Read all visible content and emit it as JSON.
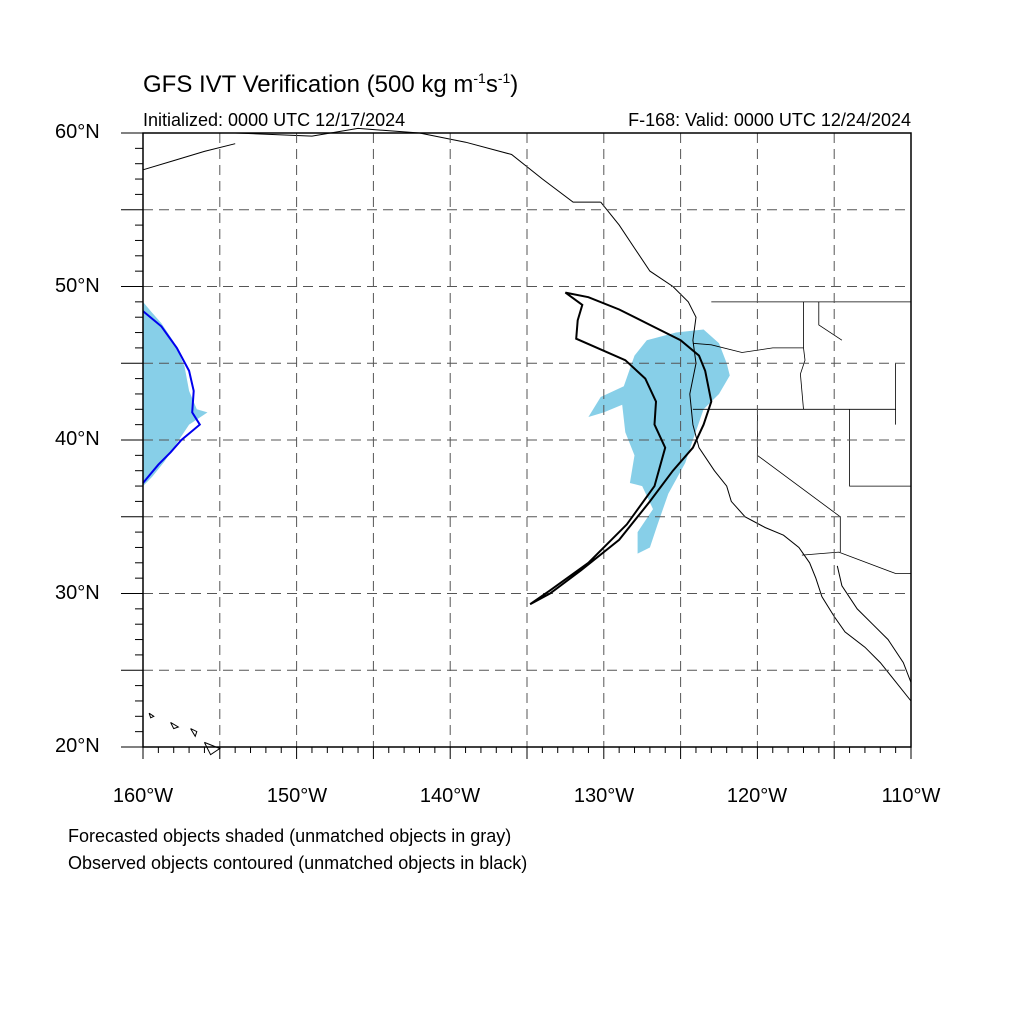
{
  "title": {
    "main": "GFS IVT Verification (500 kg m",
    "exp1": "-1",
    "mid": "s",
    "exp2": "-1",
    "end": ")"
  },
  "subtitle_left": "Initialized: 0000 UTC 12/17/2024",
  "subtitle_right": "F-168: Valid: 0000 UTC 12/24/2024",
  "lat_labels": [
    "60°N",
    "50°N",
    "40°N",
    "30°N",
    "20°N"
  ],
  "lon_labels": [
    "160°W",
    "150°W",
    "140°W",
    "130°W",
    "120°W",
    "110°W"
  ],
  "notes": [
    "Forecasted objects shaded (unmatched objects in gray)",
    "Observed objects contoured (unmatched objects in black)"
  ],
  "colors": {
    "forecast_fill": "#87cfe8",
    "matched_contour": "#0000ee",
    "unmatched_contour": "#000000",
    "grid": "#555555"
  },
  "map_extent": {
    "lon_min": -160,
    "lon_max": -110,
    "lat_min": 20,
    "lat_max": 60
  },
  "forecast_objects": [
    {
      "name": "west-edge-object",
      "lonlat": [
        [
          -160,
          49
        ],
        [
          -159.5,
          48.4
        ],
        [
          -158.8,
          47.6
        ],
        [
          -158.0,
          46.4
        ],
        [
          -157.3,
          44.8
        ],
        [
          -157.0,
          43.2
        ],
        [
          -156.5,
          42.0
        ],
        [
          -155.8,
          41.8
        ],
        [
          -157.0,
          41.0
        ],
        [
          -157.8,
          39.8
        ],
        [
          -158.6,
          38.6
        ],
        [
          -159.4,
          37.6
        ],
        [
          -160,
          37.0
        ]
      ]
    },
    {
      "name": "ar-object",
      "lonlat": [
        [
          -128.8,
          42.3
        ],
        [
          -130.0,
          41.8
        ],
        [
          -131.0,
          41.5
        ],
        [
          -130.2,
          42.8
        ],
        [
          -128.7,
          43.5
        ],
        [
          -128.0,
          45.5
        ],
        [
          -127.2,
          46.5
        ],
        [
          -125.3,
          47.0
        ],
        [
          -123.5,
          47.2
        ],
        [
          -122.5,
          46.3
        ],
        [
          -122.0,
          45.0
        ],
        [
          -121.8,
          44.2
        ],
        [
          -122.5,
          43.0
        ],
        [
          -123.5,
          42.0
        ],
        [
          -124.2,
          40.0
        ],
        [
          -124.7,
          38.5
        ],
        [
          -125.8,
          36.5
        ],
        [
          -126.5,
          34.5
        ],
        [
          -127.0,
          33.0
        ],
        [
          -127.8,
          32.6
        ],
        [
          -127.8,
          34.0
        ],
        [
          -126.8,
          35.5
        ],
        [
          -127.5,
          37.0
        ],
        [
          -128.3,
          37.2
        ],
        [
          -128.0,
          39.0
        ],
        [
          -128.6,
          40.5
        ]
      ]
    }
  ],
  "observed_objects": [
    {
      "name": "west-edge-contour",
      "matched": true,
      "lonlat": [
        [
          -160,
          48.4
        ],
        [
          -158.8,
          47.4
        ],
        [
          -157.8,
          46.0
        ],
        [
          -157.0,
          44.5
        ],
        [
          -156.7,
          43.2
        ],
        [
          -156.8,
          41.8
        ],
        [
          -156.3,
          41.0
        ],
        [
          -157.5,
          40.0
        ],
        [
          -158.2,
          39.2
        ],
        [
          -159.0,
          38.4
        ],
        [
          -160,
          37.2
        ]
      ]
    },
    {
      "name": "ar-contour",
      "matched": false,
      "lonlat": [
        [
          -132.5,
          49.6
        ],
        [
          -131.0,
          49.3
        ],
        [
          -129.0,
          48.5
        ],
        [
          -127.0,
          47.5
        ],
        [
          -125.0,
          46.5
        ],
        [
          -123.8,
          45.5
        ],
        [
          -123.4,
          44.5
        ],
        [
          -123.0,
          42.5
        ],
        [
          -123.5,
          41.0
        ],
        [
          -124.2,
          39.5
        ],
        [
          -125.5,
          38.0
        ],
        [
          -127.0,
          36.0
        ],
        [
          -129.0,
          33.5
        ],
        [
          -131.5,
          31.5
        ],
        [
          -133.5,
          30.0
        ],
        [
          -134.8,
          29.3
        ],
        [
          -133.5,
          30.2
        ],
        [
          -131.0,
          32.0
        ],
        [
          -128.5,
          34.5
        ],
        [
          -126.7,
          37.0
        ],
        [
          -126.0,
          39.5
        ],
        [
          -126.7,
          41.0
        ],
        [
          -126.6,
          42.5
        ],
        [
          -127.3,
          44.0
        ],
        [
          -128.6,
          45.2
        ],
        [
          -130.2,
          45.9
        ],
        [
          -131.8,
          46.6
        ],
        [
          -131.7,
          47.8
        ],
        [
          -131.4,
          48.8
        ]
      ]
    }
  ],
  "coast_lines": [
    [
      [
        -130.2,
        55.5
      ],
      [
        -129.0,
        54.0
      ],
      [
        -128.0,
        52.5
      ],
      [
        -127.0,
        51.0
      ],
      [
        -125.5,
        50.0
      ],
      [
        -124.5,
        49.0
      ],
      [
        -124.0,
        48.0
      ],
      [
        -124.2,
        46.5
      ],
      [
        -124.0,
        45.0
      ],
      [
        -124.4,
        43.0
      ],
      [
        -124.2,
        41.0
      ],
      [
        -123.8,
        39.5
      ],
      [
        -122.8,
        38.0
      ],
      [
        -122.0,
        37.0
      ],
      [
        -121.7,
        36.0
      ],
      [
        -120.8,
        35.0
      ],
      [
        -119.5,
        34.3
      ],
      [
        -118.3,
        33.8
      ],
      [
        -117.3,
        33.0
      ],
      [
        -116.6,
        32.0
      ],
      [
        -116.2,
        31.0
      ],
      [
        -115.8,
        29.8
      ],
      [
        -115.0,
        28.5
      ],
      [
        -114.3,
        27.5
      ],
      [
        -113.0,
        26.5
      ],
      [
        -112.0,
        25.5
      ],
      [
        -111.2,
        24.5
      ],
      [
        -110.0,
        23.0
      ]
    ],
    [
      [
        -154.0,
        60.0
      ],
      [
        -149.0,
        59.8
      ],
      [
        -146.0,
        60.3
      ],
      [
        -142.0,
        60.0
      ],
      [
        -139.0,
        59.4
      ],
      [
        -136.0,
        58.6
      ],
      [
        -134.0,
        57.0
      ],
      [
        -132.0,
        55.5
      ],
      [
        -130.2,
        55.5
      ]
    ],
    [
      [
        -160,
        57.6
      ],
      [
        -158.0,
        58.2
      ],
      [
        -156.0,
        58.8
      ],
      [
        -154.0,
        59.3
      ]
    ],
    [
      [
        -114.8,
        31.8
      ],
      [
        -114.5,
        30.5
      ],
      [
        -113.5,
        29.0
      ],
      [
        -112.5,
        28.0
      ],
      [
        -111.5,
        27.0
      ],
      [
        -110.5,
        25.5
      ],
      [
        -110,
        24.2
      ]
    ]
  ],
  "island_lines": [
    [
      [
        -158.2,
        21.6
      ],
      [
        -157.7,
        21.3
      ],
      [
        -158.0,
        21.2
      ],
      [
        -158.2,
        21.6
      ]
    ],
    [
      [
        -159.6,
        22.2
      ],
      [
        -159.3,
        22.0
      ],
      [
        -159.5,
        21.9
      ],
      [
        -159.6,
        22.2
      ]
    ],
    [
      [
        -156.9,
        21.2
      ],
      [
        -156.5,
        21.0
      ],
      [
        -156.6,
        20.7
      ],
      [
        -156.9,
        21.2
      ]
    ],
    [
      [
        -156.0,
        20.3
      ],
      [
        -155.0,
        19.9
      ],
      [
        -155.6,
        19.5
      ],
      [
        -156.0,
        20.3
      ]
    ]
  ],
  "border_lines": [
    [
      [
        -123.0,
        49.0
      ],
      [
        -110,
        49.0
      ]
    ],
    [
      [
        -124.2,
        46.3
      ],
      [
        -123.0,
        46.2
      ],
      [
        -121.0,
        45.7
      ],
      [
        -119.0,
        46.0
      ],
      [
        -117.0,
        46.0
      ]
    ],
    [
      [
        -124.2,
        42.0
      ],
      [
        -117.0,
        42.0
      ],
      [
        -111.0,
        42.0
      ]
    ],
    [
      [
        -120.0,
        42.0
      ],
      [
        -120.0,
        39.0
      ],
      [
        -114.6,
        35.0
      ],
      [
        -114.6,
        32.7
      ]
    ],
    [
      [
        -117.1,
        32.5
      ],
      [
        -114.7,
        32.7
      ],
      [
        -111.0,
        31.3
      ],
      [
        -110,
        31.3
      ]
    ],
    [
      [
        -117.0,
        49.0
      ],
      [
        -117.0,
        46.0
      ],
      [
        -116.9,
        45.2
      ],
      [
        -117.2,
        44.3
      ],
      [
        -117.0,
        42.0
      ]
    ],
    [
      [
        -114.0,
        42.0
      ],
      [
        -114.0,
        37.0
      ],
      [
        -110,
        37.0
      ]
    ],
    [
      [
        -111.0,
        45.0
      ],
      [
        -111.0,
        41.0
      ]
    ],
    [
      [
        -116.0,
        49.0
      ],
      [
        -116.0,
        47.5
      ],
      [
        -114.5,
        46.5
      ]
    ]
  ]
}
